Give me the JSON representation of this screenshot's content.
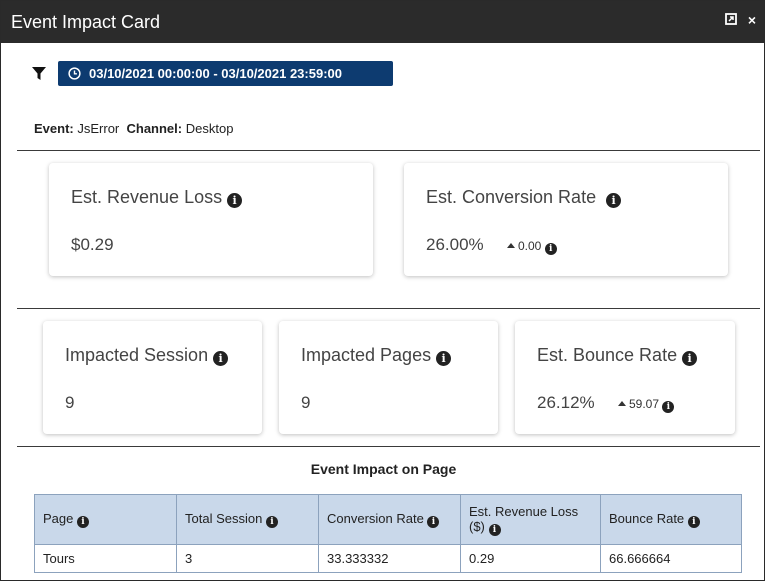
{
  "window": {
    "title": "Event Impact Card",
    "expand_icon": "expand-icon",
    "close_icon": "close-icon",
    "close_glyph": "×",
    "expand_glyph": "⧉"
  },
  "filter": {
    "icon": "filter-icon",
    "date_range": "03/10/2021 00:00:00 - 03/10/2021 23:59:00",
    "date_icon": "clock-icon"
  },
  "meta": {
    "event_label": "Event:",
    "event_value": "JsError",
    "channel_label": "Channel:",
    "channel_value": "Desktop"
  },
  "cards_top": [
    {
      "label": "Est. Revenue Loss",
      "value": "$0.29",
      "delta": ""
    },
    {
      "label": "Est. Conversion Rate",
      "value": "26.00%",
      "delta": "0.00"
    }
  ],
  "cards_bottom": [
    {
      "label": "Impacted Session",
      "value": "9",
      "delta": ""
    },
    {
      "label": "Impacted Pages",
      "value": "9",
      "delta": ""
    },
    {
      "label": "Est. Bounce Rate",
      "value": "26.12%",
      "delta": "59.07"
    }
  ],
  "table": {
    "title": "Event Impact on Page",
    "columns": [
      "Page",
      "Total Session",
      "Conversion Rate",
      "Est. Revenue Loss ($)",
      "Bounce Rate"
    ],
    "rows": [
      [
        "Tours",
        "3",
        "33.333332",
        "0.29",
        "66.666664"
      ]
    ]
  },
  "colors": {
    "titlebar": "#2b2b2b",
    "date_pill": "#0d3b70",
    "table_header": "#c9d8ea"
  },
  "info_glyph": "i"
}
